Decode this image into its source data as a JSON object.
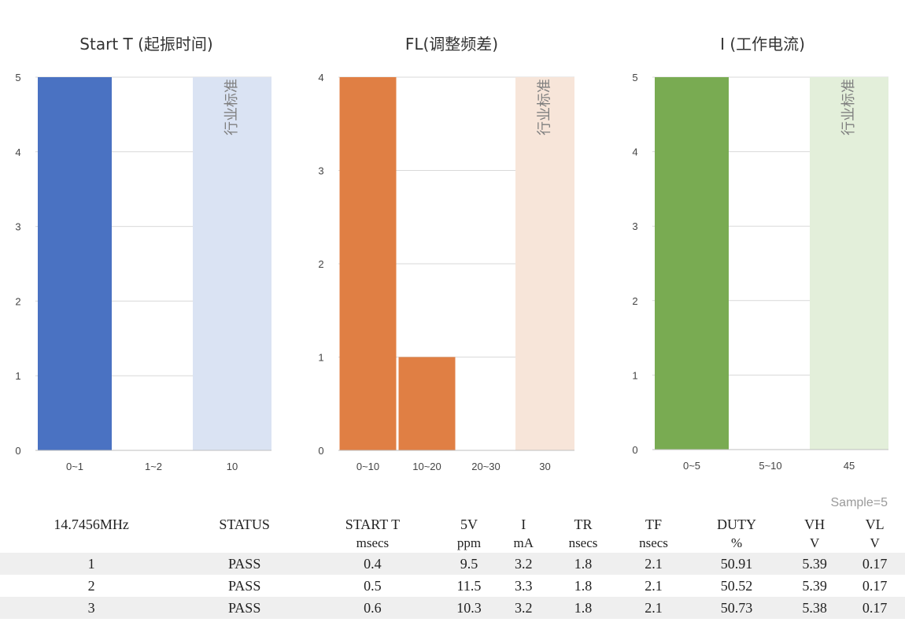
{
  "chart_data": [
    {
      "type": "bar",
      "title": "Start T (起振时间)",
      "categories": [
        "0~1",
        "1~2",
        "10"
      ],
      "values": [
        5,
        0,
        5
      ],
      "ylim": [
        0,
        5
      ],
      "yticks": [
        "0",
        "1",
        "2",
        "3",
        "4",
        "5"
      ],
      "bar_color": "#4a72c2",
      "standard_color": "#dae3f3",
      "standard_label": "行业标准",
      "grid": true
    },
    {
      "type": "bar",
      "title": "FL(调整频差)",
      "categories": [
        "0~10",
        "10~20",
        "20~30",
        "30"
      ],
      "values": [
        4,
        1,
        0,
        4
      ],
      "ylim": [
        0,
        4
      ],
      "yticks": [
        "0",
        "1",
        "2",
        "3",
        "4"
      ],
      "bar_color": "#e07f44",
      "standard_color": "#f7e5d9",
      "standard_label": "行业标准",
      "grid": true
    },
    {
      "type": "bar",
      "title": "I (工作电流)",
      "categories": [
        "0~5",
        "5~10",
        "45"
      ],
      "values": [
        5,
        0,
        5
      ],
      "ylim": [
        0,
        5
      ],
      "yticks": [
        "0",
        "1",
        "2",
        "3",
        "4",
        "5"
      ],
      "bar_color": "#79ab52",
      "standard_color": "#e3efda",
      "standard_label": "行业标准",
      "grid": true
    }
  ],
  "table": {
    "sample_note": "Sample=5",
    "headers": [
      "14.7456MHz",
      "STATUS",
      "START T",
      "5V",
      "I",
      "TR",
      "TF",
      "DUTY",
      "VH",
      "VL"
    ],
    "units": [
      "",
      "",
      "msecs",
      "ppm",
      "mA",
      "nsecs",
      "nsecs",
      "%",
      "V",
      "V"
    ],
    "rows": [
      [
        "1",
        "PASS",
        "0.4",
        "9.5",
        "3.2",
        "1.8",
        "2.1",
        "50.91",
        "5.39",
        "0.17"
      ],
      [
        "2",
        "PASS",
        "0.5",
        "11.5",
        "3.3",
        "1.8",
        "2.1",
        "50.52",
        "5.39",
        "0.17"
      ],
      [
        "3",
        "PASS",
        "0.6",
        "10.3",
        "3.2",
        "1.8",
        "2.1",
        "50.73",
        "5.38",
        "0.17"
      ]
    ]
  }
}
